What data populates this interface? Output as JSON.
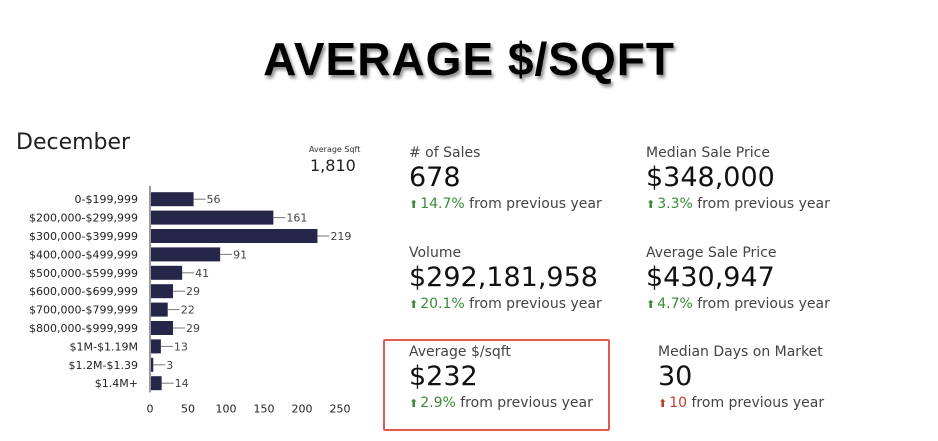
{
  "title": "AVERAGE $/SQFT",
  "month": "December",
  "avg_sqft": {
    "label": "Average Sqft",
    "value": "1,810"
  },
  "chart_data": {
    "type": "bar",
    "orientation": "horizontal",
    "categories": [
      "0-$199,999",
      "$200,000-$299,999",
      "$300,000-$399,999",
      "$400,000-$499,999",
      "$500,000-$599,999",
      "$600,000-$699,999",
      "$700,000-$799,999",
      "$800,000-$999,999",
      "$1M-$1.19M",
      "$1.2M-$1.39",
      "$1.4M+"
    ],
    "values": [
      56,
      161,
      219,
      91,
      41,
      29,
      22,
      29,
      13,
      3,
      14
    ],
    "xticks": [
      0,
      50,
      100,
      150,
      200,
      250
    ],
    "xlim": [
      0,
      250
    ],
    "bar_color": "#26264a",
    "grid": false
  },
  "stats": [
    {
      "label": "# of Sales",
      "value": "678",
      "pct": "14.7%",
      "suffix": "from previous year",
      "direction": "up"
    },
    {
      "label": "Median Sale Price",
      "value": "$348,000",
      "pct": "3.3%",
      "suffix": "from previous year",
      "direction": "up"
    },
    {
      "label": "Volume",
      "value": "$292,181,958",
      "pct": "20.1%",
      "suffix": "from previous year",
      "direction": "up"
    },
    {
      "label": "Average Sale Price",
      "value": "$430,947",
      "pct": "4.7%",
      "suffix": "from previous year",
      "direction": "up"
    },
    {
      "label": "Average $/sqft",
      "value": "$232",
      "pct": "2.9%",
      "suffix": "from previous year",
      "direction": "up"
    },
    {
      "label": "Median Days on Market",
      "value": "30",
      "pct": "10",
      "suffix": "from previous year",
      "direction": "up-red"
    }
  ],
  "colors": {
    "up": "#3b8a3b",
    "down": "#c0392b",
    "highlight": "#e05a52"
  }
}
